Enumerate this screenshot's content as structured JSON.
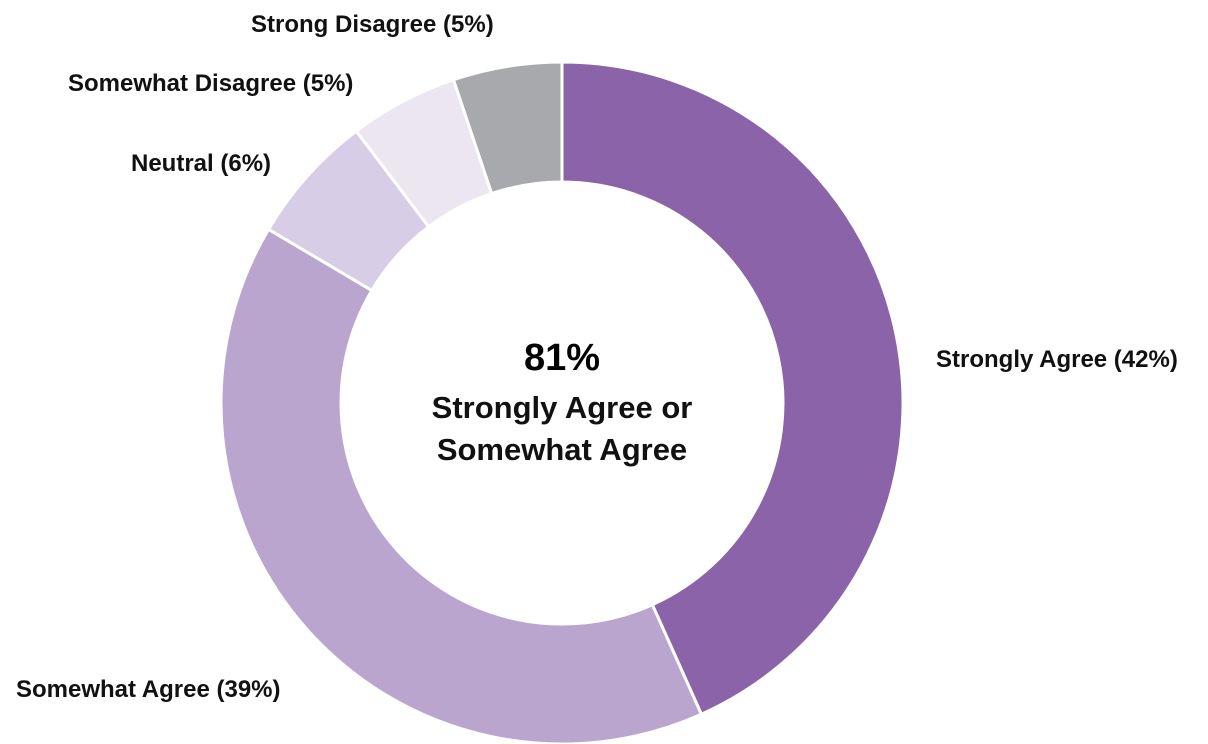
{
  "chart_data": {
    "type": "pie",
    "variant": "donut",
    "categories": [
      "Strongly Agree",
      "Somewhat Agree",
      "Neutral",
      "Somewhat Disagree",
      "Strong Disagree"
    ],
    "values": [
      42,
      39,
      6,
      5,
      5
    ],
    "labels": [
      "Strongly Agree (42%)",
      "Somewhat Agree (39%)",
      "Neutral (6%)",
      "Somewhat Disagree (5%)",
      "Strong Disagree (5%)"
    ],
    "colors": [
      "#8b63a8",
      "#baa5cf",
      "#d8cde6",
      "#ece6f2",
      "#a7a9ac"
    ],
    "start_angle_deg": 0,
    "direction": "clockwise",
    "center": {
      "value": "81%",
      "caption_line1": "Strongly Agree or",
      "caption_line2": "Somewhat Agree"
    },
    "title": "",
    "legend": "none"
  }
}
